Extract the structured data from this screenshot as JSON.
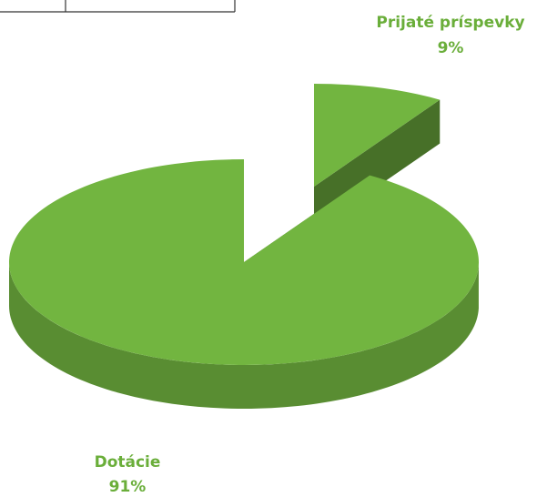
{
  "chart_data": {
    "type": "pie",
    "categories": [
      "Dotácie",
      "Prijaté príspevky"
    ],
    "values": [
      91,
      9
    ],
    "value_labels": [
      "91%",
      "9%"
    ],
    "colors": [
      "#72b540",
      "#72b540"
    ]
  }
}
